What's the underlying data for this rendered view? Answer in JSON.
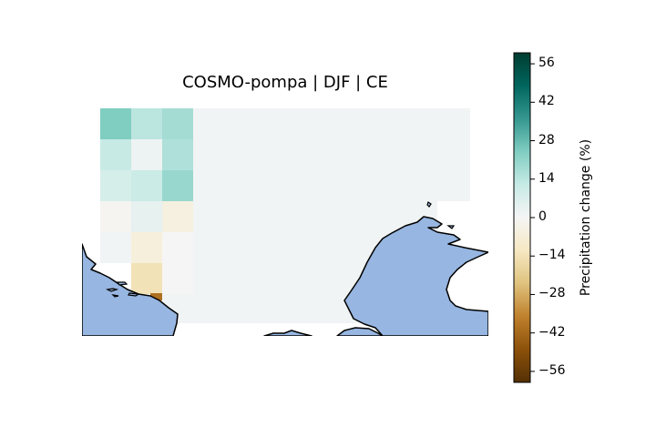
{
  "title": "COSMO-pompa | DJF | CE",
  "colorbar": {
    "label": "Precipitation change (%)",
    "ticks": [
      56,
      42,
      28,
      14,
      0,
      -14,
      -28,
      -42,
      -56
    ],
    "tick_labels": [
      "56",
      "42",
      "28",
      "14",
      "0",
      "−14",
      "−28",
      "−42",
      "−56"
    ],
    "range": [
      -60,
      60
    ],
    "colormap": "BrBG"
  },
  "colors": {
    "sea": "#97b6e1",
    "coast": "#000000",
    "background_cell": "#eef3f1"
  },
  "chart_data": {
    "type": "heatmap",
    "title": "COSMO-pompa | DJF | CE",
    "value_label": "Precipitation change (%)",
    "value_range": [
      -60,
      60
    ],
    "grid_values": [
      [
        24,
        14,
        18
      ],
      [
        12,
        2,
        16
      ],
      [
        8,
        11,
        20
      ],
      [
        -1,
        4,
        -5
      ],
      [
        1,
        -6,
        0
      ],
      [
        null,
        -14,
        0
      ]
    ],
    "background_value": 1
  }
}
